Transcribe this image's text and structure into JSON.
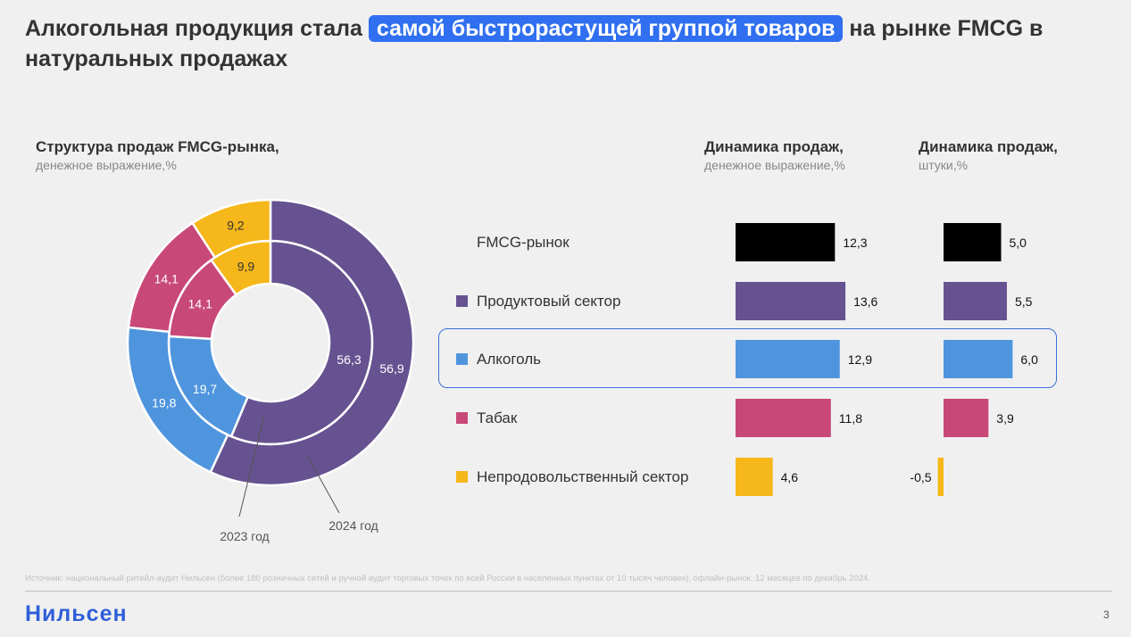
{
  "header": {
    "title_before": "Алкогольная продукция стала",
    "title_highlight": "самой быстрорастущей группой товаров",
    "title_after": "на рынке FMCG в натуральных продажах"
  },
  "chart_data": [
    {
      "type": "donut",
      "title": "Структура продаж FMCG-рынка,",
      "subtitle": "денежное выражение,%",
      "rings": [
        {
          "name": "2023 год",
          "values": [
            56.3,
            19.7,
            14.1,
            9.9
          ],
          "labels": [
            "56,3",
            "19,7",
            "14,1",
            "9,9"
          ]
        },
        {
          "name": "2024 год",
          "values": [
            56.9,
            19.8,
            14.1,
            9.2
          ],
          "labels": [
            "56,9",
            "19,8",
            "14,1",
            "9,2"
          ]
        }
      ],
      "segment_colors": [
        "#665290",
        "#4f95de",
        "#c84878",
        "#f6b71a"
      ]
    },
    {
      "type": "bar",
      "orientation": "horizontal",
      "title": "Динамика продаж,",
      "subtitle": "денежное выражение,%",
      "categories": [
        "FMCG-рынок",
        "Продуктовый сектор",
        "Алкоголь",
        "Табак",
        "Непродовольственный сектор"
      ],
      "values": [
        12.3,
        13.6,
        12.9,
        11.8,
        4.6
      ],
      "labels": [
        "12,3",
        "13,6",
        "12,9",
        "11,8",
        "4,6"
      ]
    },
    {
      "type": "bar",
      "orientation": "horizontal",
      "title": "Динамика продаж,",
      "subtitle": "штуки,%",
      "categories": [
        "FMCG-рынок",
        "Продуктовый сектор",
        "Алкоголь",
        "Табак",
        "Непродовольственный сектор"
      ],
      "values": [
        5.0,
        5.5,
        6.0,
        3.9,
        -0.5
      ],
      "labels": [
        "5,0",
        "5,5",
        "6,0",
        "3,9",
        "-0,5"
      ]
    }
  ],
  "legend": [
    {
      "label": "FMCG-рынок",
      "color": "#000000",
      "marker": false
    },
    {
      "label": "Продуктовый сектор",
      "color": "#665290",
      "marker": true
    },
    {
      "label": "Алкоголь",
      "color": "#4f95de",
      "marker": true
    },
    {
      "label": "Табак",
      "color": "#c84878",
      "marker": true
    },
    {
      "label": "Непродовольственный сектор",
      "color": "#f6b71a",
      "marker": true
    }
  ],
  "highlighted_category": "Алкоголь",
  "footer": {
    "source": "Источник: национальный ритейл-аудит Нильсен (более 180 розничных сетей и ручной аудит торговых точек по всей России в населенных пунктах от 10 тысяч человек), офлайн-рынок. 12 месяцев по декабрь 2024.",
    "logo": "Нильсен",
    "page_number": "3"
  }
}
